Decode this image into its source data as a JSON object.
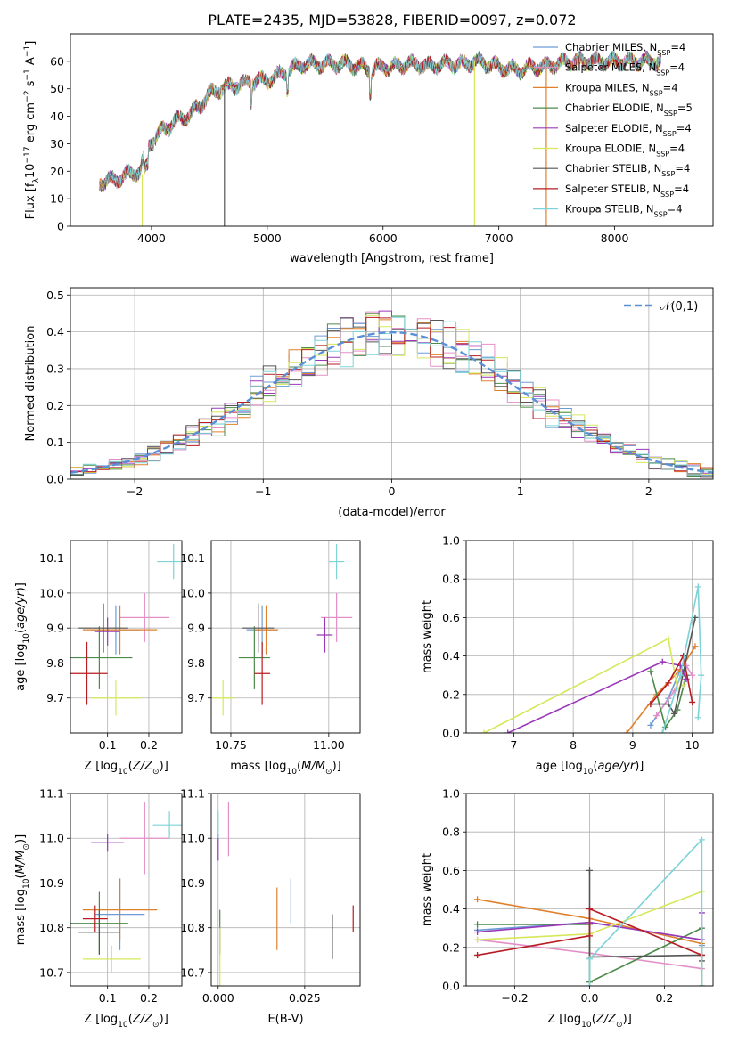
{
  "title": "PLATE=2435, MJD=53828, FIBERID=0097, z=0.072",
  "colors": [
    "#6c9bd6",
    "#e38fc7",
    "#e0802b",
    "#4c8a4c",
    "#9a38b8",
    "#d6e85a",
    "#555555",
    "#b81c22",
    "#7dd3d8"
  ],
  "legend": [
    "Chabrier MILES, N_SSP=4",
    "Salpeter MILES, N_SSP=4",
    "Kroupa MILES, N_SSP=4",
    "Chabrier ELODIE, N_SSP=5",
    "Salpeter ELODIE, N_SSP=4",
    "Kroupa ELODIE, N_SSP=4",
    "Chabrier STELIB, N_SSP=4",
    "Salpeter STELIB, N_SSP=4",
    "Kroupa STELIB, N_SSP=4"
  ],
  "chart_data": [
    {
      "id": "spectrum",
      "type": "line",
      "xlabel": "wavelength [Angstrom, rest frame]",
      "ylabel": "Flux [f_λ10^-17 erg cm^-2 s^-1 A^-1]",
      "xlim": [
        3300,
        8850
      ],
      "ylim": [
        0,
        70
      ],
      "xticks": [
        4000,
        5000,
        6000,
        7000,
        8000
      ],
      "yticks": [
        0,
        10,
        20,
        30,
        40,
        50,
        60
      ],
      "continuum": {
        "x": [
          3550,
          3700,
          3800,
          3900,
          3950,
          4000,
          4100,
          4200,
          4300,
          4400,
          4500,
          4600,
          4700,
          4800,
          4900,
          5000,
          5100,
          5200,
          5300,
          5400,
          5500,
          5600,
          5700,
          5800,
          5900,
          6000,
          6100,
          6200,
          6300,
          6400,
          6500,
          6600,
          6700,
          6800,
          6900,
          7000,
          7100,
          7200,
          7300,
          7400,
          7500,
          7600,
          7700,
          7800,
          7900,
          8000,
          8100,
          8200,
          8300,
          8400
        ],
        "y": [
          16,
          17,
          19,
          20,
          27,
          31,
          35,
          38,
          40,
          43,
          48,
          50,
          51,
          52,
          53,
          53,
          55,
          57,
          59,
          59,
          59,
          59,
          59,
          58,
          57,
          58,
          58,
          59,
          59,
          58,
          59,
          59,
          59,
          60,
          59,
          58,
          57,
          57,
          58,
          58,
          59,
          60,
          60,
          60,
          60,
          60,
          60,
          60,
          60,
          60
        ]
      },
      "spikes": [
        {
          "x": 3920,
          "ymax": 19
        },
        {
          "x": 4630,
          "ymax": 50
        },
        {
          "x": 6790,
          "ymax": 60
        },
        {
          "x": 7410,
          "ymax": 58
        }
      ]
    },
    {
      "id": "residuals",
      "type": "histogram",
      "xlabel": "(data-model)/error",
      "ylabel": "Normed distribution",
      "xlim": [
        -2.5,
        2.5
      ],
      "ylim": [
        0,
        0.52
      ],
      "xticks": [
        -2,
        -1,
        0,
        1,
        2
      ],
      "yticks": [
        0.0,
        0.1,
        0.2,
        0.3,
        0.4,
        0.5
      ],
      "bin_width": 0.1,
      "reference": "N(0,1)",
      "legend_label": "𝒩(0,1)"
    },
    {
      "id": "age-vs-Z",
      "type": "scatter",
      "xlabel": "Z [log10(Z/Z⊙)]",
      "ylabel": "age [log10(age/yr)]",
      "xlim": [
        0.01,
        0.28
      ],
      "ylim": [
        9.6,
        10.15
      ],
      "xticks": [
        0.1,
        0.2
      ],
      "yticks": [
        9.7,
        9.8,
        9.9,
        10.0,
        10.1
      ],
      "points": [
        {
          "x": 0.12,
          "y": 9.895,
          "xerr": 0.06,
          "yerr": 0.07
        },
        {
          "x": 0.19,
          "y": 9.93,
          "xerr": 0.06,
          "yerr": 0.07
        },
        {
          "x": 0.13,
          "y": 9.895,
          "xerr": 0.09,
          "yerr": 0.07
        },
        {
          "x": 0.08,
          "y": 9.815,
          "xerr": 0.08,
          "yerr": 0.09
        },
        {
          "x": 0.1,
          "y": 9.89,
          "xerr": 0.03,
          "yerr": 0.04
        },
        {
          "x": 0.12,
          "y": 9.7,
          "xerr": 0.06,
          "yerr": 0.05
        },
        {
          "x": 0.09,
          "y": 9.9,
          "xerr": 0.06,
          "yerr": 0.07
        },
        {
          "x": 0.05,
          "y": 9.77,
          "xerr": 0.05,
          "yerr": 0.09
        },
        {
          "x": 0.26,
          "y": 10.09,
          "xerr": 0.04,
          "yerr": 0.05
        }
      ]
    },
    {
      "id": "age-vs-mass",
      "type": "scatter",
      "xlabel": "mass [log10(M/M⊙)]",
      "ylabel": "",
      "xlim": [
        10.7,
        11.08
      ],
      "ylim": [
        9.6,
        10.15
      ],
      "xticks": [
        10.75,
        11.0
      ],
      "yticks": [
        9.7,
        9.8,
        9.9,
        10.0,
        10.1
      ],
      "points": [
        {
          "x": 10.83,
          "y": 9.895,
          "xerr": 0.04,
          "yerr": 0.07
        },
        {
          "x": 11.02,
          "y": 9.93,
          "xerr": 0.04,
          "yerr": 0.07
        },
        {
          "x": 10.84,
          "y": 9.895,
          "xerr": 0.03,
          "yerr": 0.07
        },
        {
          "x": 10.81,
          "y": 9.815,
          "xerr": 0.04,
          "yerr": 0.09
        },
        {
          "x": 10.99,
          "y": 9.88,
          "xerr": 0.02,
          "yerr": 0.05
        },
        {
          "x": 10.73,
          "y": 9.7,
          "xerr": 0.03,
          "yerr": 0.05
        },
        {
          "x": 10.82,
          "y": 9.9,
          "xerr": 0.04,
          "yerr": 0.07
        },
        {
          "x": 10.83,
          "y": 9.77,
          "xerr": 0.02,
          "yerr": 0.09
        },
        {
          "x": 11.02,
          "y": 10.09,
          "xerr": 0.02,
          "yerr": 0.05
        }
      ]
    },
    {
      "id": "mass-weight-vs-age",
      "type": "line",
      "xlabel": "age  [log10(age/yr)]",
      "ylabel": "mass weight",
      "xlim": [
        6.2,
        10.35
      ],
      "ylim": [
        0,
        1.0
      ],
      "xticks": [
        7,
        8,
        9,
        10
      ],
      "yticks": [
        0.0,
        0.2,
        0.4,
        0.6,
        0.8,
        1.0
      ],
      "series": [
        {
          "x": [
            9.3,
            9.6,
            9.8,
            9.9
          ],
          "y": [
            0.04,
            0.18,
            0.33,
            0.28
          ]
        },
        {
          "x": [
            9.4,
            9.7,
            9.9,
            10.0
          ],
          "y": [
            0.09,
            0.22,
            0.35,
            0.3
          ]
        },
        {
          "x": [
            8.9,
            9.4,
            9.8,
            10.05
          ],
          "y": [
            0.0,
            0.2,
            0.33,
            0.45
          ]
        },
        {
          "x": [
            9.3,
            9.55,
            9.75,
            9.9
          ],
          "y": [
            0.32,
            0.03,
            0.12,
            0.3
          ]
        },
        {
          "x": [
            6.9,
            9.5,
            9.8,
            9.9
          ],
          "y": [
            0.0,
            0.37,
            0.35,
            0.28
          ]
        },
        {
          "x": [
            6.5,
            9.6,
            9.75,
            9.85
          ],
          "y": [
            0.0,
            0.49,
            0.23,
            0.25
          ]
        },
        {
          "x": [
            9.3,
            9.6,
            9.7,
            10.05
          ],
          "y": [
            0.15,
            0.15,
            0.1,
            0.6
          ]
        },
        {
          "x": [
            9.3,
            9.6,
            9.85,
            10.0
          ],
          "y": [
            0.15,
            0.26,
            0.4,
            0.16
          ]
        },
        {
          "x": [
            9.5,
            9.8,
            10.1,
            10.15,
            10.1
          ],
          "y": [
            0.0,
            0.3,
            0.76,
            0.3,
            0.08
          ]
        }
      ]
    },
    {
      "id": "mass-vs-Z",
      "type": "scatter",
      "xlabel": "Z [log10(Z/Z⊙)]",
      "ylabel": "mass [log10(M/M⊙)]",
      "xlim": [
        0.01,
        0.28
      ],
      "ylim": [
        10.67,
        11.1
      ],
      "xticks": [
        0.1,
        0.2
      ],
      "yticks": [
        10.7,
        10.8,
        10.9,
        11.0,
        11.1
      ],
      "points": [
        {
          "x": 0.13,
          "y": 10.83,
          "xerr": 0.06,
          "yerr": 0.08
        },
        {
          "x": 0.19,
          "y": 11.0,
          "xerr": 0.06,
          "yerr": 0.08
        },
        {
          "x": 0.13,
          "y": 10.84,
          "xerr": 0.09,
          "yerr": 0.07
        },
        {
          "x": 0.08,
          "y": 10.81,
          "xerr": 0.07,
          "yerr": 0.07
        },
        {
          "x": 0.1,
          "y": 10.99,
          "xerr": 0.04,
          "yerr": 0.02
        },
        {
          "x": 0.11,
          "y": 10.73,
          "xerr": 0.07,
          "yerr": 0.03
        },
        {
          "x": 0.08,
          "y": 10.79,
          "xerr": 0.05,
          "yerr": 0.05
        },
        {
          "x": 0.07,
          "y": 10.82,
          "xerr": 0.03,
          "yerr": 0.03
        },
        {
          "x": 0.25,
          "y": 11.03,
          "xerr": 0.04,
          "yerr": 0.03
        }
      ]
    },
    {
      "id": "mass-vs-ebv",
      "type": "scatter",
      "xlabel": "E(B-V)",
      "ylabel": "",
      "xlim": [
        -0.002,
        0.041
      ],
      "ylim": [
        10.67,
        11.1
      ],
      "xticks": [
        0.0,
        0.025
      ],
      "yticks": [
        10.7,
        10.8,
        10.9,
        11.0,
        11.1
      ],
      "points": [
        {
          "x": 0.021,
          "y": 10.86,
          "xerr": 0,
          "yerr": 0.05
        },
        {
          "x": 0.003,
          "y": 11.02,
          "xerr": 0,
          "yerr": 0.06
        },
        {
          "x": 0.017,
          "y": 10.82,
          "xerr": 0,
          "yerr": 0.07
        },
        {
          "x": 0.0005,
          "y": 10.79,
          "xerr": 0,
          "yerr": 0.05
        },
        {
          "x": 0.0,
          "y": 10.98,
          "xerr": 0,
          "yerr": 0.03
        },
        {
          "x": 0.0005,
          "y": 10.73,
          "xerr": 0,
          "yerr": 0.07
        },
        {
          "x": 0.033,
          "y": 10.78,
          "xerr": 0,
          "yerr": 0.05
        },
        {
          "x": 0.039,
          "y": 10.82,
          "xerr": 0,
          "yerr": 0.03
        },
        {
          "x": 0.0,
          "y": 11.03,
          "xerr": 0,
          "yerr": 0.03
        }
      ]
    },
    {
      "id": "mass-weight-vs-Z",
      "type": "line",
      "xlabel": "Z [log10(Z/Z⊙)]",
      "ylabel": "mass weight",
      "xlim": [
        -0.33,
        0.33
      ],
      "ylim": [
        0,
        1.0
      ],
      "xticks": [
        -0.2,
        0.0,
        0.2
      ],
      "yticks": [
        0.0,
        0.2,
        0.4,
        0.6,
        0.8,
        1.0
      ],
      "series": [
        {
          "x": [
            -0.3,
            0.0,
            0.3,
            0.3
          ],
          "y": [
            0.29,
            0.33,
            0.24,
            0.21
          ]
        },
        {
          "x": [
            -0.3,
            0.0,
            0.3
          ],
          "y": [
            0.24,
            0.17,
            0.09
          ]
        },
        {
          "x": [
            -0.3,
            0.0,
            0.3
          ],
          "y": [
            0.45,
            0.35,
            0.22
          ]
        },
        {
          "x": [
            -0.3,
            0.0,
            0.0,
            0.3,
            0.3
          ],
          "y": [
            0.32,
            0.32,
            0.02,
            0.3,
            0.0
          ]
        },
        {
          "x": [
            -0.3,
            0.0,
            0.3,
            0.3
          ],
          "y": [
            0.28,
            0.33,
            0.24,
            0.38
          ]
        },
        {
          "x": [
            -0.3,
            0.0,
            0.3
          ],
          "y": [
            0.24,
            0.27,
            0.49
          ]
        },
        {
          "x": [
            0.0,
            0.0,
            0.3,
            0.3
          ],
          "y": [
            0.6,
            0.15,
            0.16,
            0.13
          ]
        },
        {
          "x": [
            -0.3,
            0.0,
            0.0,
            0.3
          ],
          "y": [
            0.16,
            0.26,
            0.4,
            0.16
          ]
        },
        {
          "x": [
            0.0,
            0.0,
            0.3,
            0.3
          ],
          "y": [
            0.0,
            0.14,
            0.76,
            0.0
          ]
        }
      ]
    }
  ]
}
